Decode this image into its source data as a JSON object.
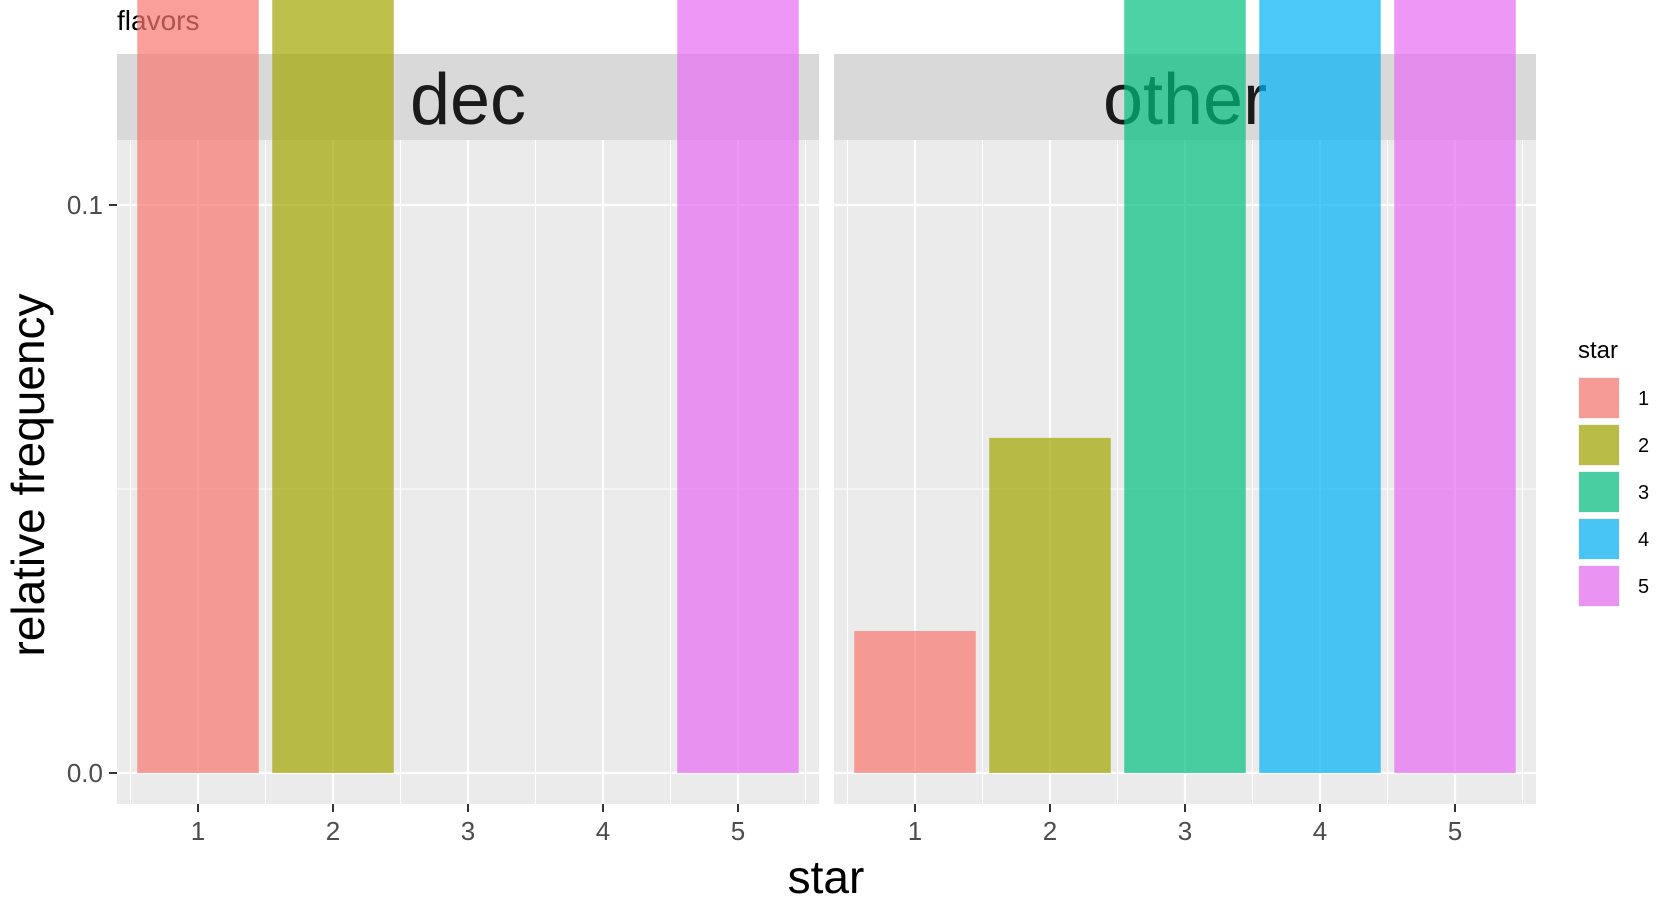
{
  "title": "flavors",
  "xlabel": "star",
  "ylabel": "relative frequency",
  "legend": {
    "title": "star",
    "position": "right",
    "items": [
      {
        "label": "1",
        "color": "#F8766D"
      },
      {
        "label": "2",
        "color": "#A3A500"
      },
      {
        "label": "3",
        "color": "#00BF7D"
      },
      {
        "label": "4",
        "color": "#00B0F6"
      },
      {
        "label": "5",
        "color": "#E76BF3"
      }
    ]
  },
  "chart_data": [
    {
      "type": "bar",
      "facet": "dec",
      "categories": [
        "1",
        "2",
        "3",
        "4",
        "5"
      ],
      "values": [
        0.4,
        0.2,
        0,
        0,
        0.4
      ],
      "ylim": [
        0,
        0.425
      ],
      "yticks": [
        "0.0",
        "0.1",
        "0.2",
        "0.3",
        "0.4"
      ],
      "grid": true
    },
    {
      "type": "bar",
      "facet": "other",
      "categories": [
        "1",
        "2",
        "3",
        "4",
        "5"
      ],
      "values": [
        0.025,
        0.059,
        0.175,
        0.317,
        0.425
      ],
      "ylim": [
        0,
        0.425
      ],
      "yticks": [
        "0.0",
        "0.1",
        "0.2",
        "0.3",
        "0.4"
      ],
      "grid": true
    }
  ]
}
